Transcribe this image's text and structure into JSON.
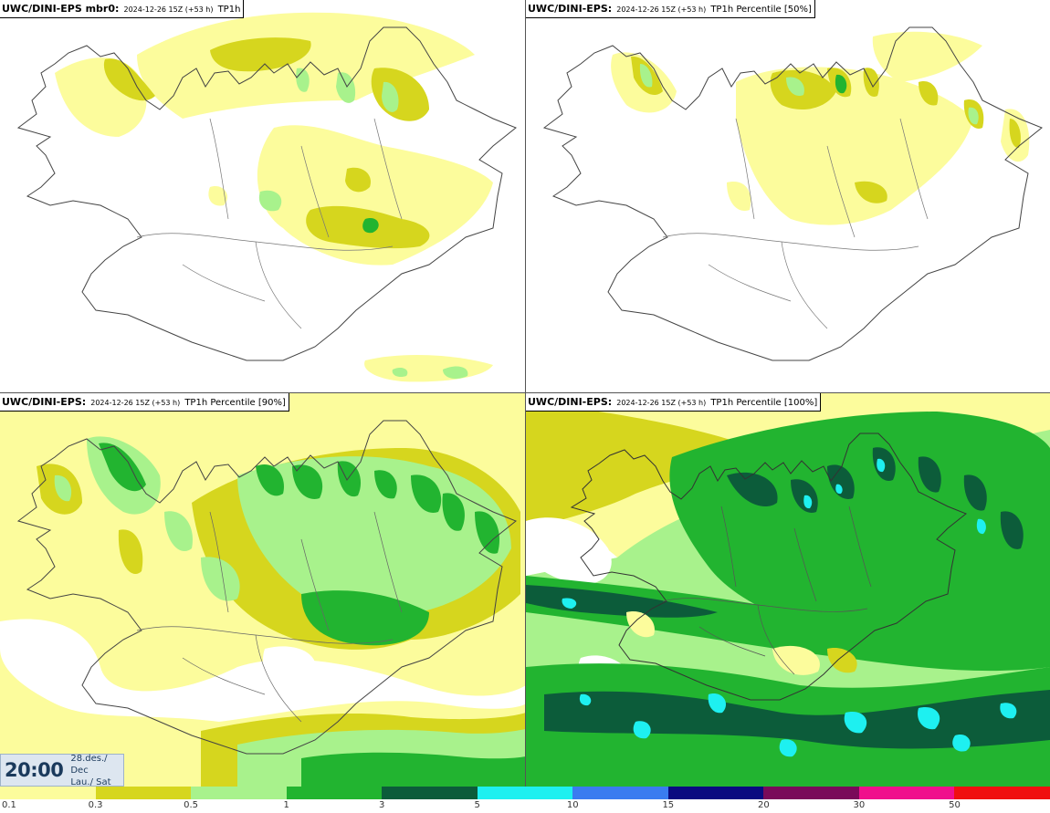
{
  "panels": [
    {
      "id": "p1",
      "model": "UWC/DINI-EPS mbr0",
      "run": "2024-12-26 15Z (+53 h)",
      "field": "TP1h"
    },
    {
      "id": "p2",
      "model": "UWC/DINI-EPS",
      "run": "2024-12-26 15Z (+53 h)",
      "field": "TP1h Percentile [50%]"
    },
    {
      "id": "p3",
      "model": "UWC/DINI-EPS",
      "run": "2024-12-26 15Z (+53 h)",
      "field": "TP1h Percentile [90%]"
    },
    {
      "id": "p4",
      "model": "UWC/DINI-EPS",
      "run": "2024-12-26 15Z (+53 h)",
      "field": "TP1h Percentile [100%]"
    }
  ],
  "clock": {
    "time": "20:00",
    "date": "28.des./ Dec",
    "day": "Lau./ Sat"
  },
  "legend": {
    "labels": [
      "0.1",
      "0.3",
      "0.5",
      "1",
      "3",
      "5",
      "10",
      "15",
      "20",
      "30",
      "50"
    ],
    "colors": [
      "#fcfc9c",
      "#d6d61e",
      "#a8f28c",
      "#22b430",
      "#0c5c3a",
      "#1ef0f0",
      "#3a7cf0",
      "#0a0a80",
      "#7a0a5a",
      "#f0108c",
      "#f01010"
    ]
  }
}
